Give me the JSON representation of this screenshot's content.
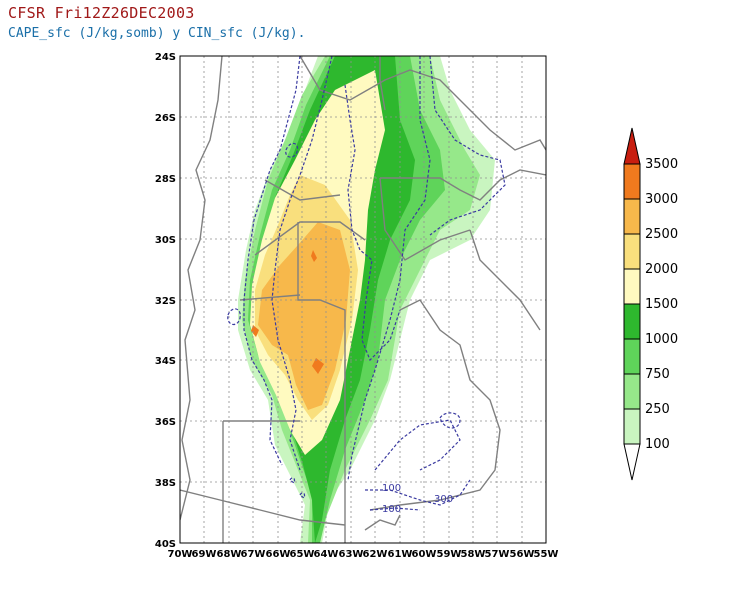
{
  "header": {
    "title": "CFSR Fri12Z26DEC2003",
    "subtitle": "CAPE_sfc (J/kg,somb) y CIN_sfc (J/kg)."
  },
  "map": {
    "lat_ticks": [
      "24S",
      "26S",
      "28S",
      "30S",
      "32S",
      "34S",
      "36S",
      "38S",
      "40S"
    ],
    "lon_ticks": [
      "70W",
      "69W",
      "68W",
      "67W",
      "66W",
      "65W",
      "64W",
      "63W",
      "62W",
      "61W",
      "60W",
      "59W",
      "58W",
      "57W",
      "56W",
      "55W"
    ],
    "contour_labels": [
      "100",
      "100",
      "300"
    ],
    "grid": true
  },
  "colorbar": {
    "levels": [
      "100",
      "250",
      "750",
      "1000",
      "1500",
      "2000",
      "2500",
      "3000",
      "3500"
    ],
    "colors": [
      "#c9f5c0",
      "#96e88a",
      "#5fd45a",
      "#2eb82e",
      "#fffac0",
      "#f9df7d",
      "#f7b84b",
      "#f07a1e",
      "#e8401a",
      "#c81e10"
    ]
  },
  "colors": {
    "cin_contour": "#3a3aa0",
    "border": "#808080",
    "coast": "#606060"
  }
}
